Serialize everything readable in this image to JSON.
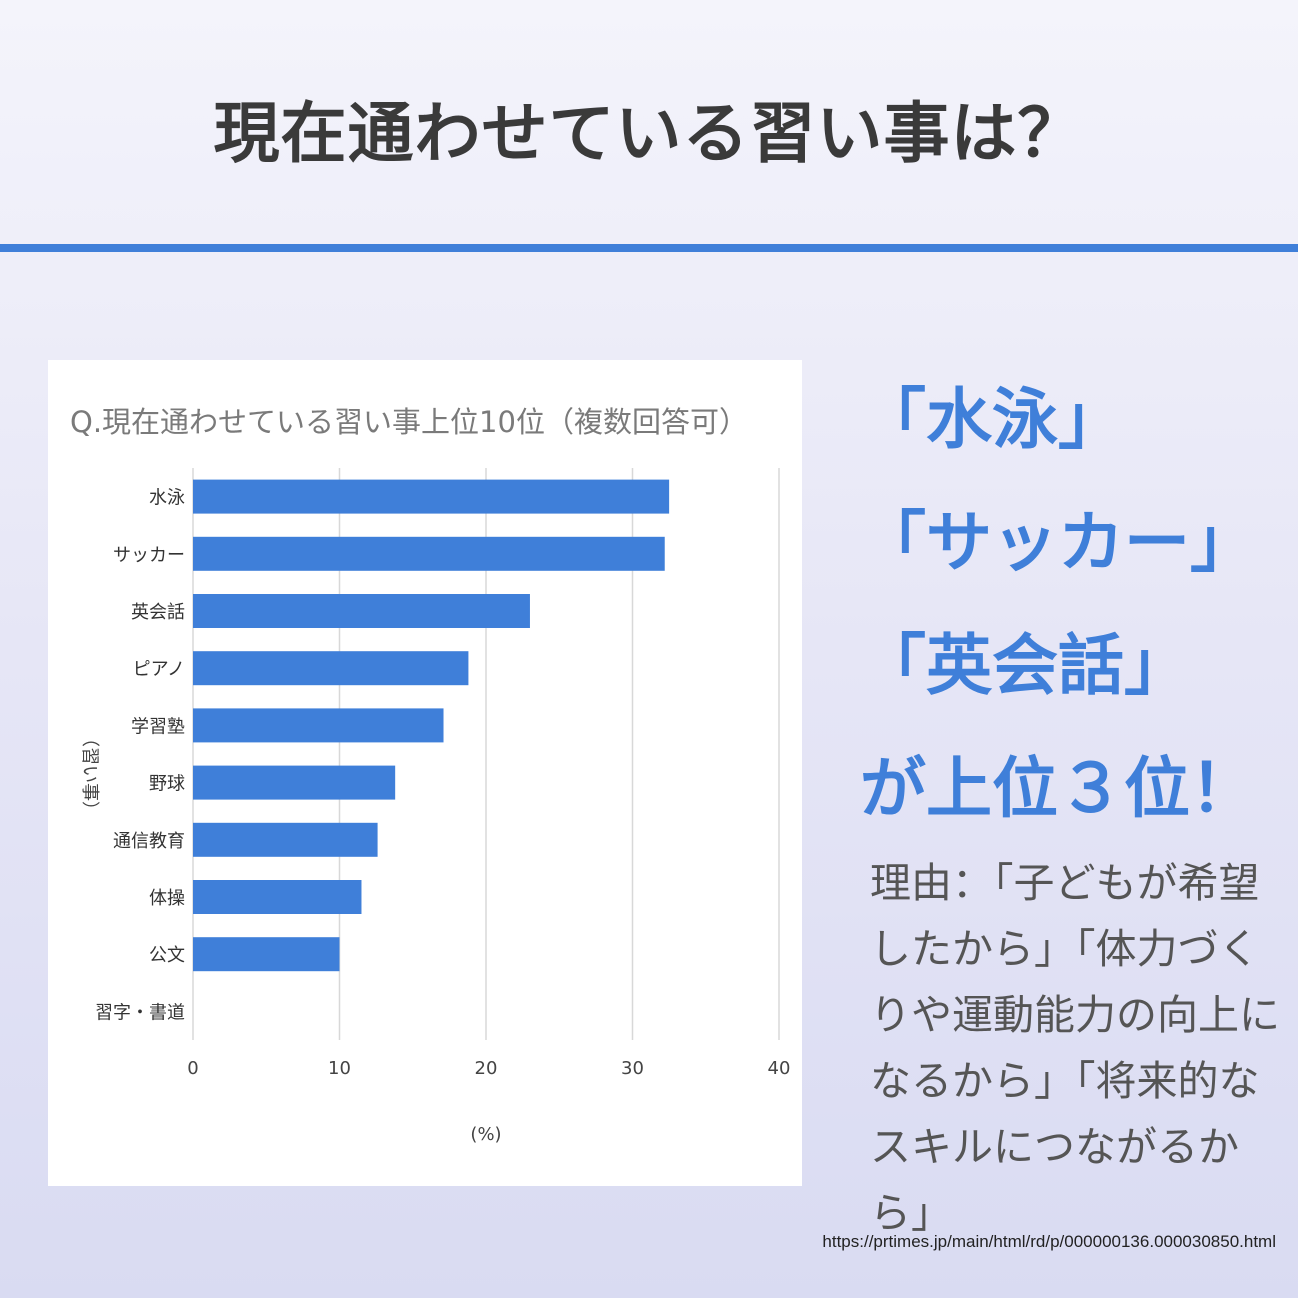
{
  "slide": {
    "title": "現在通わせている習い事は？"
  },
  "highlight": {
    "lines": [
      "「水泳」",
      "「サッカー」",
      "「英会話」",
      "が上位３位！"
    ]
  },
  "reason": {
    "text": "理由：「子どもが希望したから」「体力づくりや運動能力の向上になるから」「将来的なスキルにつながるから」"
  },
  "source": {
    "url": "https://prtimes.jp/main/html/rd/p/000000136.000030850.html"
  },
  "colors": {
    "accent": "#3f7fd9",
    "bar": "#3f7fd9",
    "title_text": "#3a3a3a",
    "reason_text": "#555555"
  },
  "chart_data": {
    "type": "bar",
    "orientation": "horizontal",
    "title": "Q.現在通わせている習い事上位10位（複数回答可）",
    "categories": [
      "水泳",
      "サッカー",
      "英会話",
      "ピアノ",
      "学習塾",
      "野球",
      "通信教育",
      "体操",
      "公文",
      "習字・書道"
    ],
    "values": [
      32.5,
      32.2,
      23.0,
      18.8,
      17.1,
      13.8,
      12.6,
      11.5,
      10.0,
      null
    ],
    "xlabel": "(%)",
    "ylabel": "（習い事）",
    "xlim": [
      0,
      40
    ],
    "xticks": [
      "0",
      "10",
      "20",
      "30",
      "40"
    ],
    "grid": "vertical",
    "legend": "none"
  }
}
